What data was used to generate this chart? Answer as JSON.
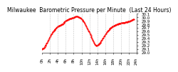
{
  "title": "Milwaukee  Barometric Pressure per Minute  (Last 24 Hours)",
  "bg_color": "#ffffff",
  "plot_bg": "#ffffff",
  "line_color": "#ff0000",
  "grid_color": "#aaaaaa",
  "y_min": 29.0,
  "y_max": 30.1,
  "yticks": [
    29.0,
    29.1,
    29.2,
    29.3,
    29.4,
    29.5,
    29.6,
    29.7,
    29.8,
    29.9,
    30.0,
    30.1
  ],
  "ytick_labels": [
    "29.0",
    "29.1",
    "29.2",
    "29.3",
    "29.4",
    "29.5",
    "29.6",
    "29.7",
    "29.8",
    "29.9",
    "30.0",
    "30.1"
  ],
  "y_values": [
    29.1,
    29.11,
    29.12,
    29.14,
    29.16,
    29.19,
    29.22,
    29.25,
    29.28,
    29.32,
    29.36,
    29.4,
    29.44,
    29.47,
    29.51,
    29.54,
    29.57,
    29.6,
    29.62,
    29.64,
    29.66,
    29.68,
    29.7,
    29.72,
    29.74,
    29.75,
    29.76,
    29.77,
    29.78,
    29.79,
    29.8,
    29.81,
    29.83,
    29.85,
    29.87,
    29.88,
    29.9,
    29.91,
    29.92,
    29.93,
    29.94,
    29.95,
    29.96,
    29.97,
    29.97,
    29.98,
    29.98,
    29.98,
    29.99,
    30.0,
    30.01,
    30.02,
    30.02,
    30.02,
    30.02,
    30.01,
    30.0,
    29.99,
    29.98,
    29.97,
    29.95,
    29.93,
    29.91,
    29.89,
    29.86,
    29.82,
    29.79,
    29.75,
    29.71,
    29.67,
    29.63,
    29.59,
    29.55,
    29.51,
    29.47,
    29.43,
    29.39,
    29.35,
    29.31,
    29.27,
    29.23,
    29.21,
    29.2,
    29.2,
    29.21,
    29.22,
    29.24,
    29.26,
    29.28,
    29.3,
    29.33,
    29.36,
    29.39,
    29.42,
    29.45,
    29.48,
    29.51,
    29.54,
    29.57,
    29.59,
    29.62,
    29.64,
    29.66,
    29.68,
    29.7,
    29.71,
    29.73,
    29.74,
    29.75,
    29.76,
    29.77,
    29.78,
    29.79,
    29.8,
    29.8,
    29.81,
    29.82,
    29.82,
    29.83,
    29.83,
    29.84,
    29.84,
    29.84,
    29.85,
    29.85,
    29.85,
    29.86,
    29.86,
    29.87,
    29.87,
    29.88,
    29.88,
    29.89,
    29.89,
    29.9,
    29.91,
    29.92,
    29.93,
    29.94,
    29.95
  ],
  "xtick_positions": [
    0,
    12,
    24,
    36,
    48,
    60,
    72,
    84,
    96,
    108,
    120,
    132,
    143
  ],
  "xtick_labels": [
    "0h",
    "2h",
    "4h",
    "6h",
    "8h",
    "10h",
    "12h",
    "14h",
    "16h",
    "18h",
    "20h",
    "22h",
    "24h"
  ],
  "vgrid_positions": [
    12,
    24,
    36,
    48,
    60,
    72,
    84,
    96,
    108,
    120,
    132
  ],
  "title_fontsize": 5.5,
  "tick_fontsize": 4.0,
  "marker_size": 1.2
}
